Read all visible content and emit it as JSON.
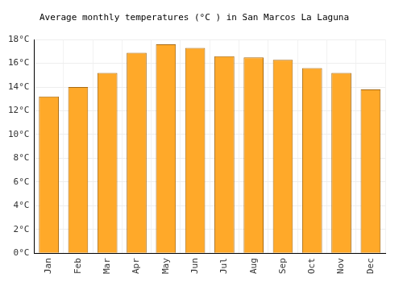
{
  "chart_data": {
    "type": "bar",
    "title": "Average monthly temperatures (°C ) in San Marcos La Laguna",
    "categories": [
      "Jan",
      "Feb",
      "Mar",
      "Apr",
      "May",
      "Jun",
      "Jul",
      "Aug",
      "Sep",
      "Oct",
      "Nov",
      "Dec"
    ],
    "values": [
      13.2,
      14.0,
      15.2,
      16.9,
      17.6,
      17.3,
      16.6,
      16.5,
      16.3,
      15.6,
      15.2,
      13.8
    ],
    "color": "#ffa929",
    "ylim": [
      0,
      18
    ],
    "yticks": [
      {
        "value": 0,
        "label": "0°C"
      },
      {
        "value": 2,
        "label": "2°C"
      },
      {
        "value": 4,
        "label": "4°C"
      },
      {
        "value": 6,
        "label": "6°C"
      },
      {
        "value": 8,
        "label": "8°C"
      },
      {
        "value": 10,
        "label": "10°C"
      },
      {
        "value": 12,
        "label": "12°C"
      },
      {
        "value": 14,
        "label": "14°C"
      },
      {
        "value": 16,
        "label": "16°C"
      },
      {
        "value": 18,
        "label": "18°C"
      }
    ],
    "grid": true
  }
}
